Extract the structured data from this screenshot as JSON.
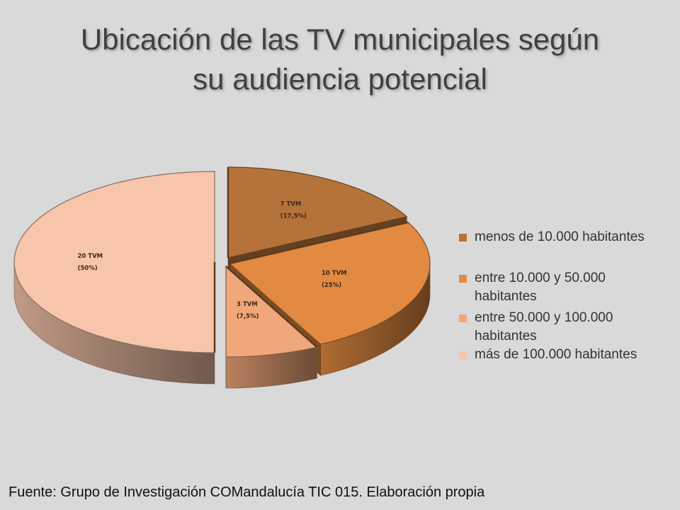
{
  "slide": {
    "title_line1": "Ubicación de las TV municipales según",
    "title_line2": "su audiencia potencial",
    "footer": "Fuente: Grupo de Investigación COMandalucía TIC 015. Elaboración propia"
  },
  "chart_data": {
    "type": "pie",
    "title": "Ubicación de las TV municipales según su audiencia potencial",
    "style": "3d-exploded",
    "legend_position": "right",
    "slices": [
      {
        "name": "menos de 10.000 habitantes",
        "value": 7,
        "label_line1": "7 TVM",
        "label_line2": "(17,5%)",
        "color": "#b5733a"
      },
      {
        "name": "entre 10.000 y 50.000 habitantes",
        "value": 10,
        "label_line1": "10 TVM",
        "label_line2": "(25%)",
        "color": "#e28a42"
      },
      {
        "name": "entre 50.000 y 100.000 habitantes",
        "value": 3,
        "label_line1": "3 TVM",
        "label_line2": "(7,5%)",
        "color": "#f0a77a"
      },
      {
        "name": "más de 100.000 habitantes",
        "value": 20,
        "label_line1": "20 TVM",
        "label_line2": "(50%)",
        "color": "#f6c5aa"
      }
    ],
    "legend_entries": [
      {
        "line1": "menos de 10.000 habitantes",
        "line2": ""
      },
      {
        "line1": "entre 10.000 y 50.000",
        "line2": "habitantes"
      },
      {
        "line1": "entre 50.000 y 100.000",
        "line2": "habitantes"
      },
      {
        "line1": "más de 100.000 habitantes",
        "line2": ""
      }
    ]
  }
}
